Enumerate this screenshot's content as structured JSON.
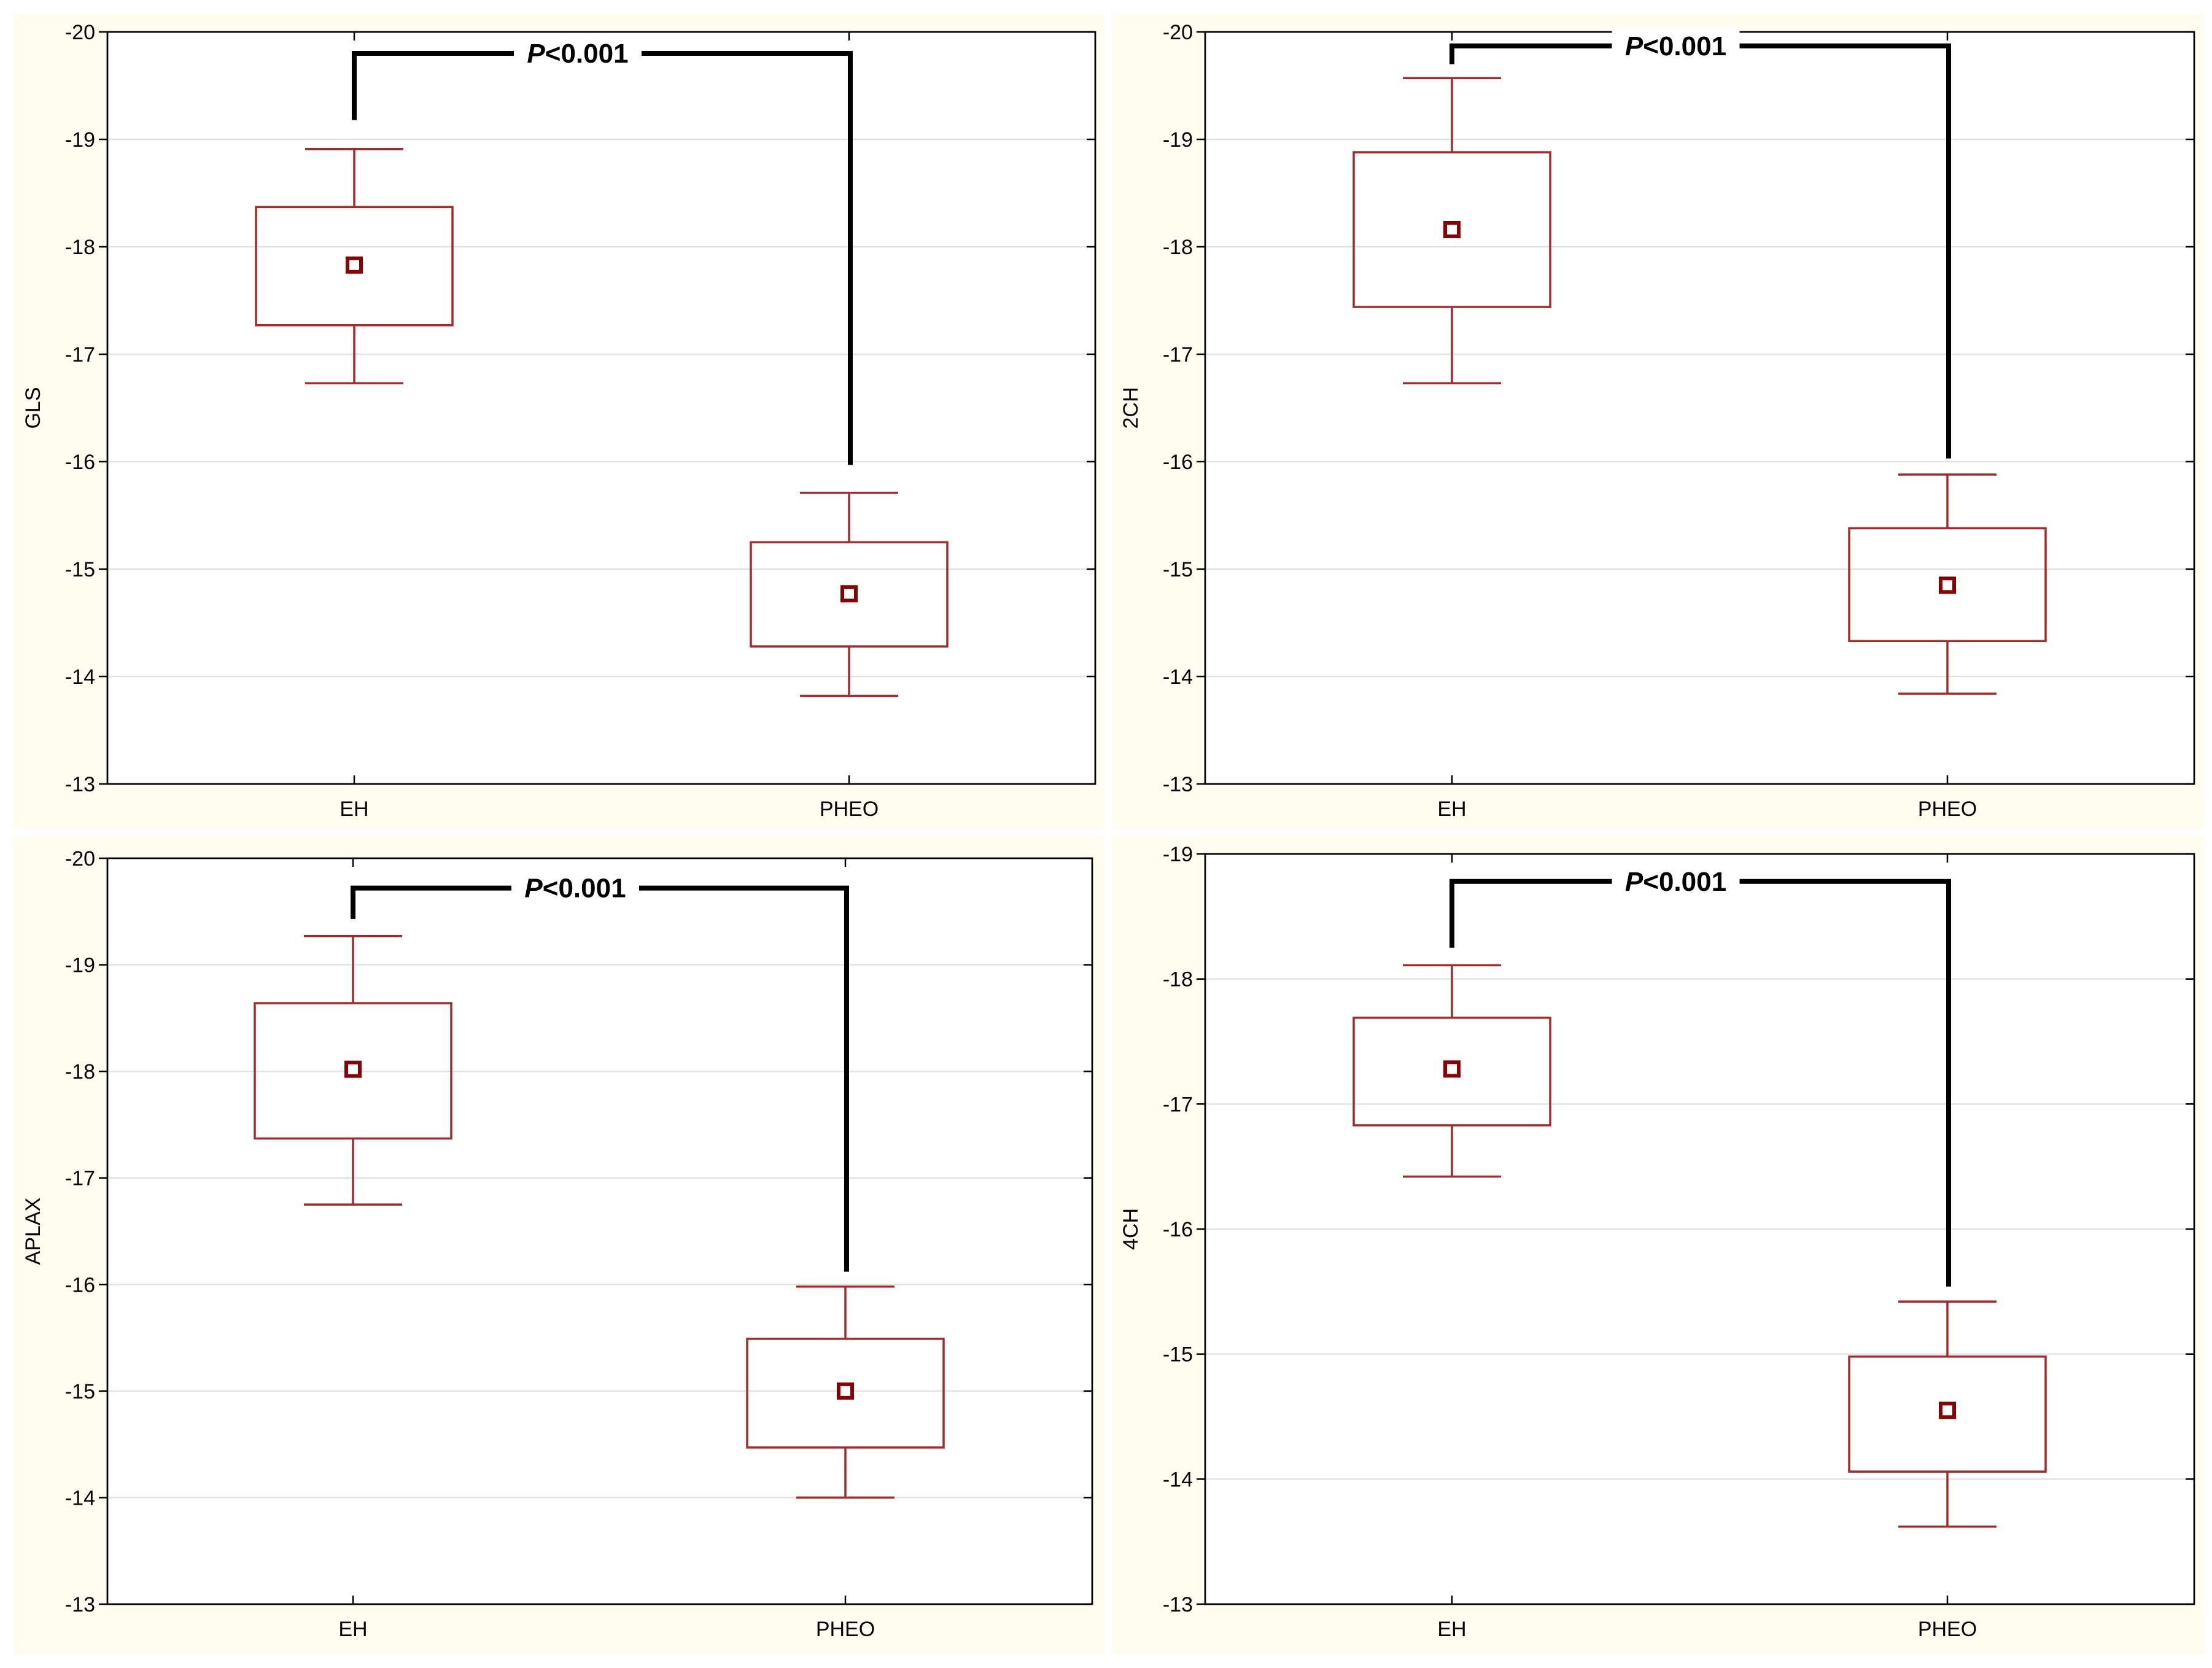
{
  "colors": {
    "panel_background": "#fffcf0",
    "box": "#a52a2a",
    "mean_marker": "#8b0000",
    "bracket": "#000000",
    "grid": "#e2e2e2"
  },
  "chart_data": [
    {
      "type": "box",
      "title": "",
      "xlabel": "",
      "ylabel": "GLS",
      "ylim": [
        -20,
        -13
      ],
      "y_reversed": true,
      "yticks": [
        -20,
        -19,
        -18,
        -17,
        -16,
        -15,
        -14,
        -13
      ],
      "ytick_labels": [
        "-20",
        "-19",
        "-18",
        "-17",
        "-16",
        "-15",
        "-14",
        "-13"
      ],
      "grid": true,
      "categories": [
        "EH",
        "PHEO"
      ],
      "mean": [
        -17.83,
        -14.77
      ],
      "box_low": [
        -17.27,
        -14.28
      ],
      "box_high": [
        -18.37,
        -15.25
      ],
      "whisker_low": [
        -16.73,
        -13.82
      ],
      "whisker_high": [
        -18.91,
        -15.71
      ],
      "annotation": {
        "prefix": "P",
        "text": "<0.001",
        "bracket_level": -19.8,
        "left_end": -19.18,
        "right_end": -15.97
      }
    },
    {
      "type": "box",
      "title": "",
      "xlabel": "",
      "ylabel": "2CH",
      "ylim": [
        -20,
        -13
      ],
      "y_reversed": true,
      "yticks": [
        -20,
        -19,
        -18,
        -17,
        -16,
        -15,
        -14,
        -13
      ],
      "ytick_labels": [
        "-20",
        "-19",
        "-18",
        "-17",
        "-16",
        "-15",
        "-14",
        "-13"
      ],
      "grid": true,
      "categories": [
        "EH",
        "PHEO"
      ],
      "mean": [
        -18.16,
        -14.85
      ],
      "box_low": [
        -17.44,
        -14.33
      ],
      "box_high": [
        -18.88,
        -15.38
      ],
      "whisker_low": [
        -16.73,
        -13.84
      ],
      "whisker_high": [
        -19.57,
        -15.88
      ],
      "annotation": {
        "prefix": "P",
        "text": "<0.001",
        "bracket_level": -19.87,
        "left_end": -19.7,
        "right_end": -16.03
      }
    },
    {
      "type": "box",
      "title": "",
      "xlabel": "",
      "ylabel": "APLAX",
      "ylim": [
        -20,
        -13
      ],
      "y_reversed": true,
      "yticks": [
        -20,
        -19,
        -18,
        -17,
        -16,
        -15,
        -14,
        -13
      ],
      "ytick_labels": [
        "-20",
        "-19",
        "-18",
        "-17",
        "-16",
        "-15",
        "-14",
        "-13"
      ],
      "grid": true,
      "categories": [
        "EH",
        "PHEO"
      ],
      "mean": [
        -18.02,
        -15.0
      ],
      "box_low": [
        -17.37,
        -14.47
      ],
      "box_high": [
        -18.64,
        -15.49
      ],
      "whisker_low": [
        -16.75,
        -14.0
      ],
      "whisker_high": [
        -19.27,
        -15.98
      ],
      "annotation": {
        "prefix": "P",
        "text": "<0.001",
        "bracket_level": -19.72,
        "left_end": -19.43,
        "right_end": -16.12
      }
    },
    {
      "type": "box",
      "title": "",
      "xlabel": "",
      "ylabel": "4CH",
      "ylim": [
        -19,
        -13
      ],
      "y_reversed": true,
      "yticks": [
        -19,
        -18,
        -17,
        -16,
        -15,
        -14,
        -13
      ],
      "ytick_labels": [
        "-19",
        "-18",
        "-17",
        "-16",
        "-15",
        "-14",
        "-13"
      ],
      "grid": true,
      "categories": [
        "EH",
        "PHEO"
      ],
      "mean": [
        -17.28,
        -14.55
      ],
      "box_low": [
        -16.83,
        -14.06
      ],
      "box_high": [
        -17.69,
        -14.98
      ],
      "whisker_low": [
        -16.42,
        -13.62
      ],
      "whisker_high": [
        -18.11,
        -15.42
      ],
      "annotation": {
        "prefix": "P",
        "text": "<0.001",
        "bracket_level": -18.78,
        "left_end": -18.25,
        "right_end": -15.54
      }
    }
  ]
}
